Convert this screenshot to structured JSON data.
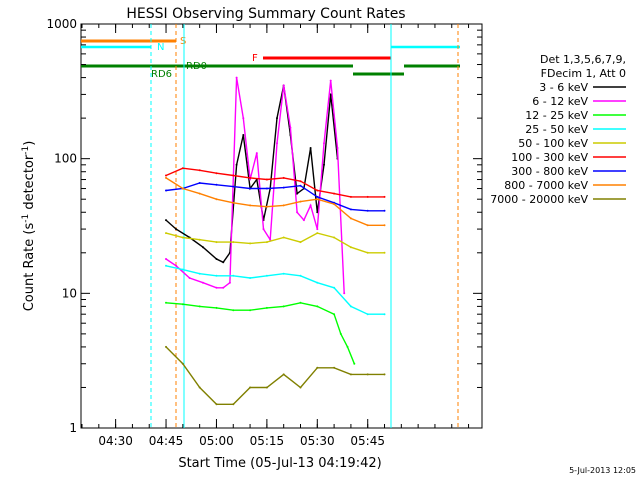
{
  "chart_data": {
    "type": "line",
    "title": "HESSI Observing Summary Count Rates",
    "xlabel": "Start Time (05-Jul-13 04:19:42)",
    "ylabel": "Count Rate (s⁻¹ detector⁻¹)",
    "ylabel_parts": [
      "Count Rate (s",
      "-1",
      " detector",
      "-1",
      ")"
    ],
    "y_scale": "log",
    "ylim": [
      1,
      1000
    ],
    "xlim_min": [
      19.7,
      79.0
    ],
    "x_ticks": [
      {
        "min": 30,
        "label": "04:30"
      },
      {
        "min": 45,
        "label": "04:45"
      },
      {
        "min": 60,
        "label": "05:00"
      },
      {
        "min": 75,
        "label": "05:15"
      },
      {
        "min": 90,
        "label": "05:30"
      },
      {
        "min": 105,
        "label": "05:45"
      }
    ],
    "y_ticks": [
      {
        "value": 1,
        "label": "1"
      },
      {
        "value": 10,
        "label": "10"
      },
      {
        "value": 100,
        "label": "100"
      },
      {
        "value": 1000,
        "label": "1000"
      }
    ],
    "footer_date": "5-Jul-2013 12:05",
    "legend": {
      "header": [
        "Det 1,3,5,6,7,9,",
        "FDecim 1, Att 0"
      ],
      "position": "right"
    },
    "series": [
      {
        "name": "3 - 6 keV",
        "color": "#000000",
        "x": [
          45,
          48,
          52,
          56,
          60,
          62,
          64,
          66,
          68,
          70,
          72,
          74,
          76,
          78,
          80,
          82,
          84,
          86,
          88,
          90,
          92,
          94,
          96
        ],
        "values": [
          35,
          30,
          26,
          22,
          18,
          17,
          20,
          90,
          150,
          60,
          70,
          35,
          60,
          200,
          350,
          150,
          55,
          60,
          120,
          40,
          90,
          300,
          100
        ]
      },
      {
        "name": "6 - 12 keV",
        "color": "#ff00ff",
        "x": [
          45,
          48,
          52,
          56,
          60,
          62,
          64,
          66,
          68,
          70,
          72,
          74,
          76,
          78,
          80,
          82,
          84,
          86,
          88,
          90,
          92,
          94,
          96,
          98
        ],
        "values": [
          18,
          16,
          13,
          12,
          11,
          11,
          12,
          400,
          200,
          70,
          110,
          30,
          25,
          130,
          350,
          170,
          40,
          35,
          45,
          30,
          130,
          380,
          120,
          10
        ]
      },
      {
        "name": "12 - 25 keV",
        "color": "#00ff00",
        "x": [
          45,
          50,
          55,
          60,
          65,
          70,
          75,
          80,
          85,
          90,
          95,
          97,
          99,
          101
        ],
        "values": [
          8.5,
          8.3,
          8,
          7.8,
          7.5,
          7.5,
          7.8,
          8,
          8.5,
          8,
          7,
          5,
          4,
          3
        ]
      },
      {
        "name": "25 - 50 keV",
        "color": "#00ffff",
        "x": [
          45,
          50,
          55,
          60,
          65,
          70,
          75,
          80,
          85,
          90,
          95,
          100,
          105,
          110
        ],
        "values": [
          16,
          15,
          14,
          13.5,
          13.5,
          13,
          13.5,
          14,
          13.5,
          12,
          11,
          8,
          7,
          7
        ]
      },
      {
        "name": "50 - 100 keV",
        "color": "#cccc00",
        "x": [
          45,
          50,
          55,
          60,
          65,
          70,
          75,
          80,
          85,
          90,
          95,
          100,
          105,
          110
        ],
        "values": [
          28,
          26,
          25,
          24,
          24,
          23.5,
          24,
          26,
          24,
          28,
          26,
          22,
          20,
          20
        ]
      },
      {
        "name": "100 - 300 keV",
        "color": "#ff0000",
        "x": [
          45,
          50,
          55,
          60,
          65,
          70,
          75,
          80,
          85,
          90,
          95,
          100,
          105,
          110
        ],
        "values": [
          75,
          85,
          82,
          78,
          75,
          72,
          70,
          72,
          68,
          58,
          55,
          52,
          52,
          52
        ]
      },
      {
        "name": "300 - 800 keV",
        "color": "#0000ff",
        "x": [
          45,
          50,
          55,
          60,
          65,
          70,
          75,
          80,
          85,
          90,
          95,
          100,
          105,
          110
        ],
        "values": [
          58,
          60,
          66,
          64,
          62,
          60,
          60,
          61,
          63,
          52,
          47,
          42,
          41,
          41
        ]
      },
      {
        "name": "800 - 7000 keV",
        "color": "#ff8000",
        "x": [
          45,
          50,
          55,
          60,
          65,
          70,
          75,
          80,
          85,
          90,
          95,
          100,
          105,
          110
        ],
        "values": [
          72,
          60,
          55,
          50,
          47,
          45,
          44,
          45,
          48,
          50,
          46,
          36,
          32,
          32
        ]
      },
      {
        "name": "7000 - 20000 keV",
        "color": "#808000",
        "x": [
          45,
          50,
          55,
          60,
          65,
          70,
          75,
          80,
          85,
          90,
          95,
          100,
          105,
          110
        ],
        "values": [
          4,
          3,
          2,
          1.5,
          1.5,
          2,
          2,
          2.5,
          2,
          2.8,
          2.8,
          2.5,
          2.5,
          2.5
        ]
      }
    ],
    "flags": [
      {
        "label": "S",
        "color": "#ff8000"
      },
      {
        "label": "N",
        "color": "#00ffff"
      },
      {
        "label": "F",
        "color": "#ff0000"
      },
      {
        "label": "RD0",
        "color": "#008000"
      },
      {
        "label": "RD6",
        "color": "#008000"
      }
    ]
  }
}
